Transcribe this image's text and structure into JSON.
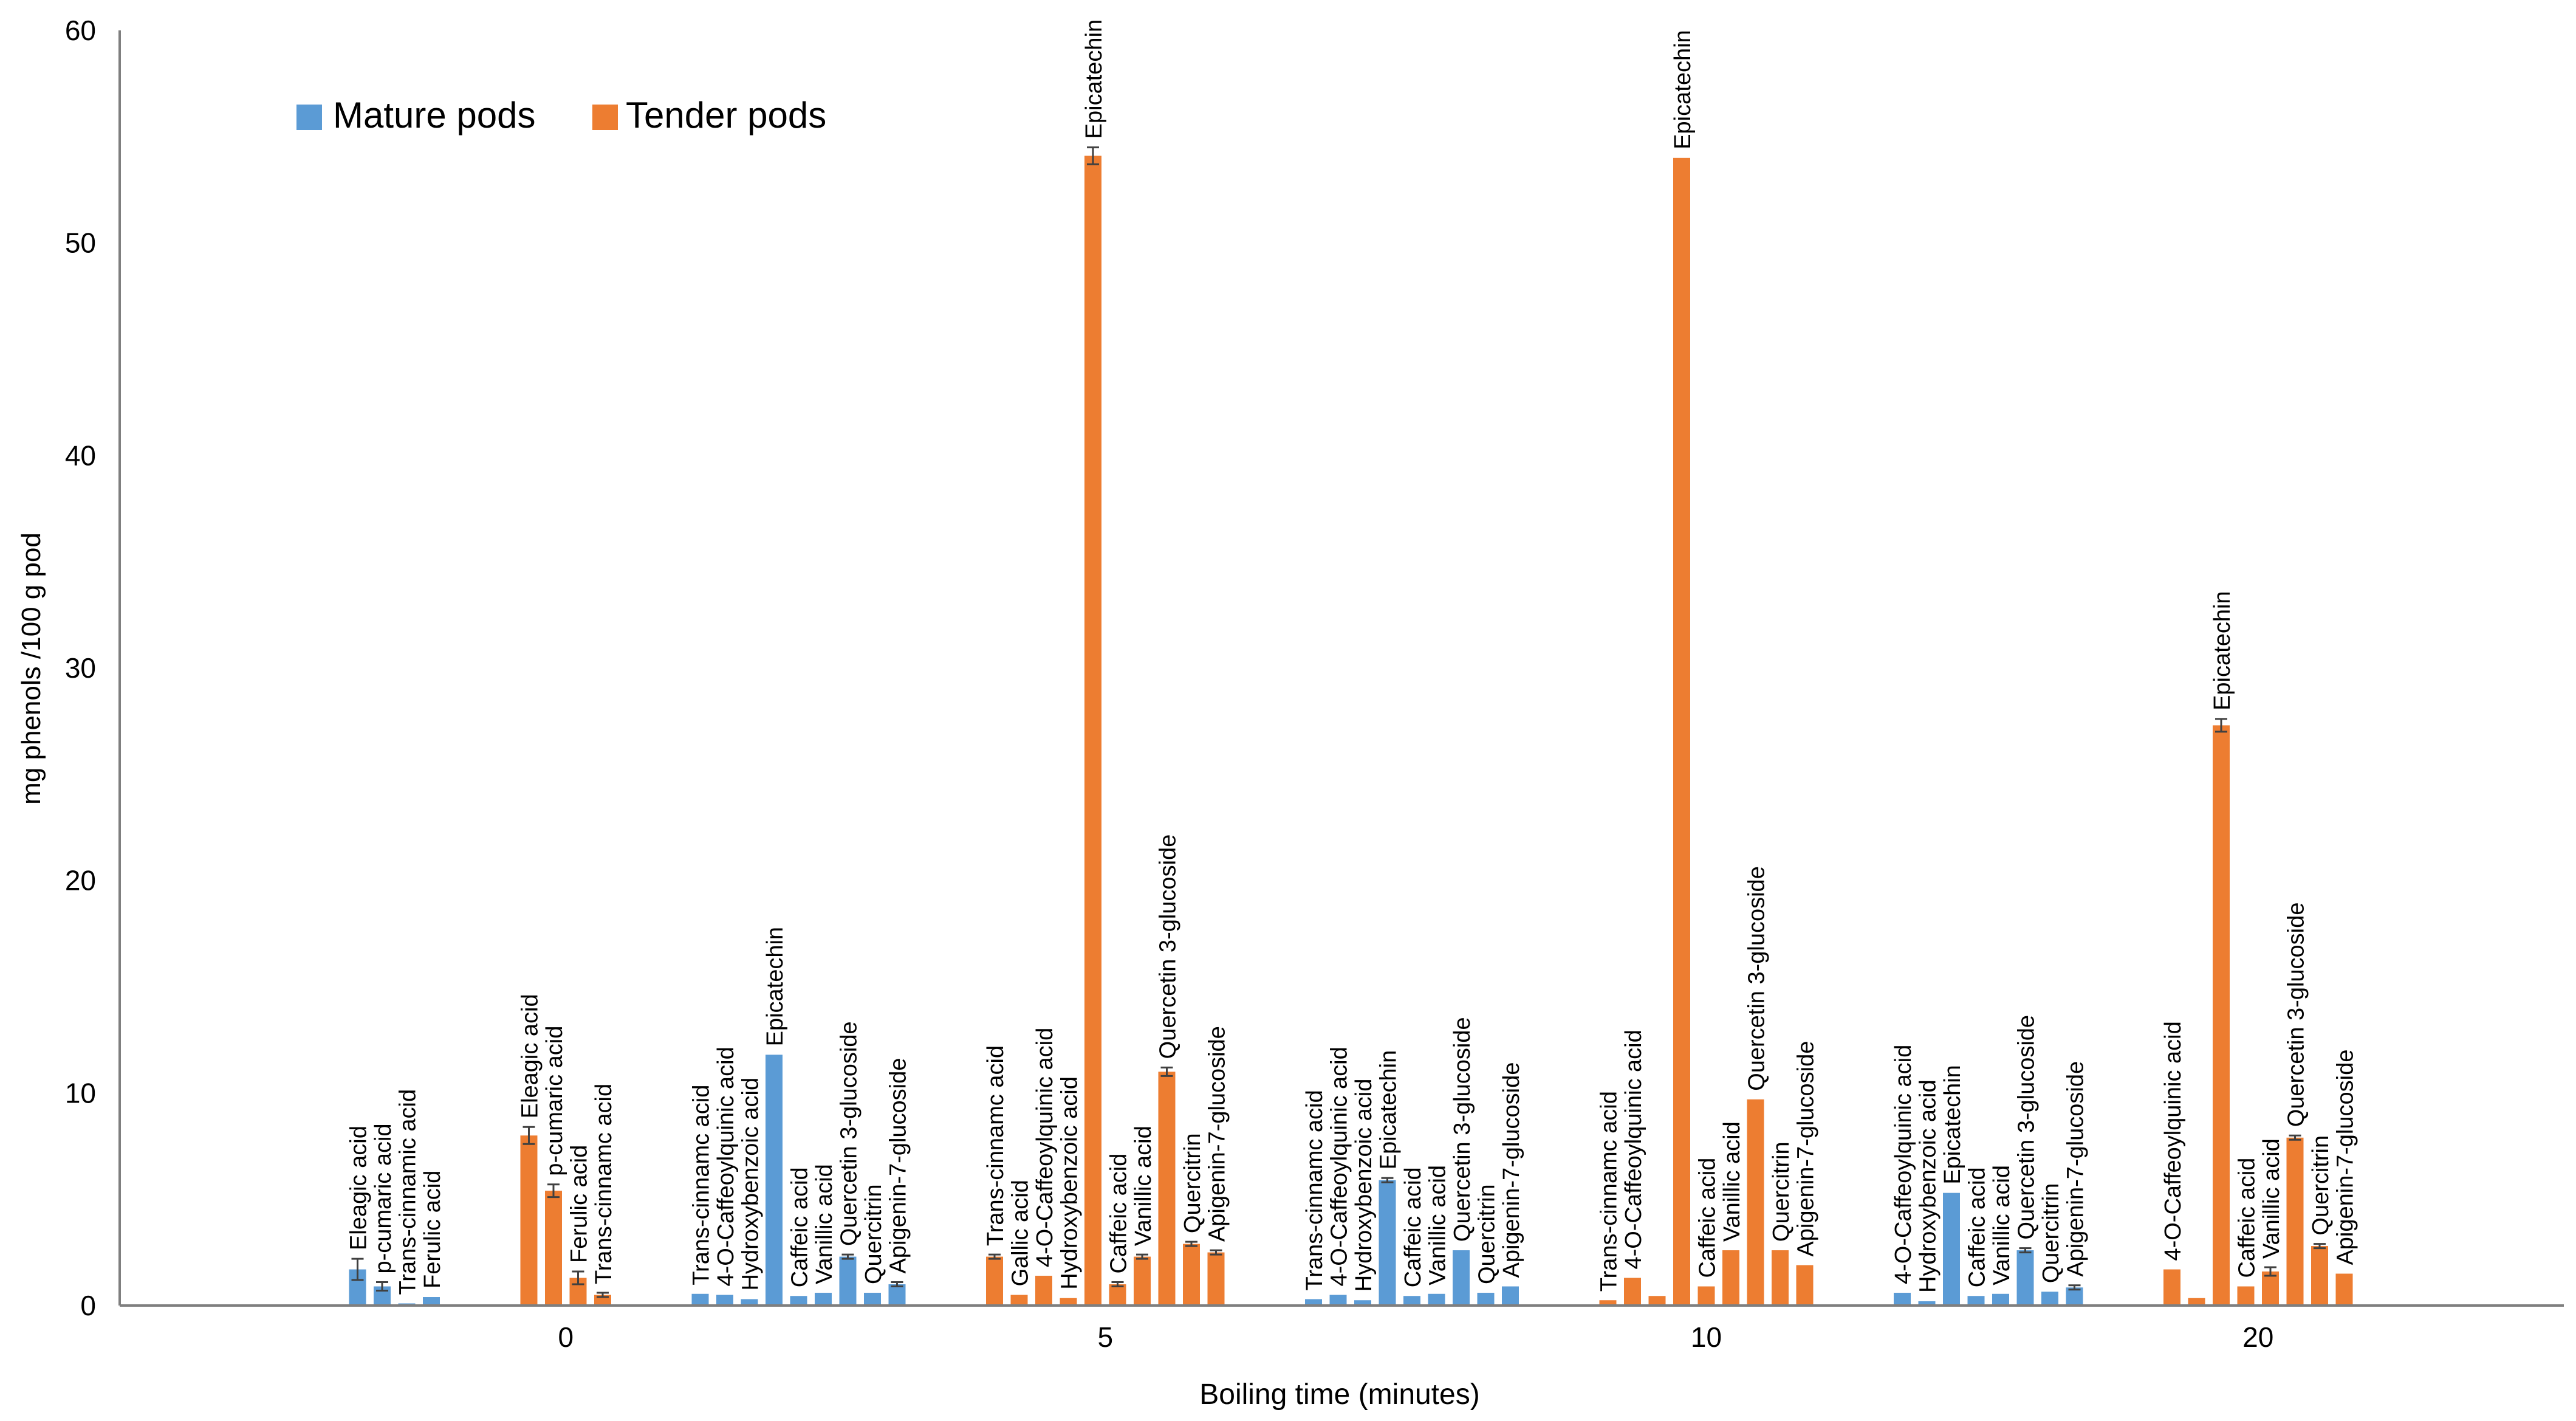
{
  "colors": {
    "mature": "#5B9BD5",
    "tender": "#ED7D31",
    "axis": "#7F7F7F",
    "error": "#404040"
  },
  "chart_data": {
    "type": "bar",
    "title": "",
    "xlabel": "Boiling time (minutes)",
    "ylabel": "mg  phenols /100 g pod",
    "ylim": [
      0,
      60
    ],
    "yticks": [
      "0",
      "10",
      "20",
      "30",
      "40",
      "50",
      "60"
    ],
    "xticks": [
      "0",
      "5",
      "10",
      "20"
    ],
    "grid": false,
    "legend_position": "top-left",
    "legend": [
      {
        "key": "mature",
        "label": "Mature pods"
      },
      {
        "key": "tender",
        "label": "Tender pods"
      }
    ],
    "groups": [
      {
        "tick": "",
        "series": "mature",
        "bars": [
          {
            "label": "Eleagic acid",
            "value": 1.7,
            "err": 0.5
          },
          {
            "label": "p-cumaric acid",
            "value": 0.9,
            "err": 0.2
          },
          {
            "label": "Trans-cinnamic acid",
            "value": 0.1,
            "err": 0
          },
          {
            "label": "Ferulic acid",
            "value": 0.4,
            "err": 0
          }
        ]
      },
      {
        "tick": "0",
        "series": "tender",
        "bars": [
          {
            "label": "Eleagic acid",
            "value": 8.0,
            "err": 0.4
          },
          {
            "label": "p-cumaric acid",
            "value": 5.4,
            "err": 0.3
          },
          {
            "label": "Ferulic acid",
            "value": 1.3,
            "err": 0.3
          },
          {
            "label": "Trans-cinnamc acid",
            "value": 0.5,
            "err": 0.1
          }
        ]
      },
      {
        "tick": "",
        "series": "mature",
        "bars": [
          {
            "label": "Trans-cinnamc acid",
            "value": 0.55,
            "err": 0
          },
          {
            "label": "4-O-Caffeoylquinic acid",
            "value": 0.5,
            "err": 0
          },
          {
            "label": "Hydroxybenzoic acid",
            "value": 0.3,
            "err": 0
          },
          {
            "label": "Epicatechin",
            "value": 11.8,
            "err": 0
          },
          {
            "label": "Caffeic acid",
            "value": 0.45,
            "err": 0
          },
          {
            "label": "Vanillic acid",
            "value": 0.6,
            "err": 0
          },
          {
            "label": "Quercetin 3-glucoside",
            "value": 2.3,
            "err": 0.1
          },
          {
            "label": "Quercitrin",
            "value": 0.6,
            "err": 0
          },
          {
            "label": "Apigenin-7-glucoside",
            "value": 1.0,
            "err": 0.1
          }
        ]
      },
      {
        "tick": "5",
        "series": "tender",
        "bars": [
          {
            "label": "Trans-cinnamc acid",
            "value": 2.3,
            "err": 0.1
          },
          {
            "label": "Gallic acid",
            "value": 0.5,
            "err": 0
          },
          {
            "label": "4-O-Caffeoylquinic acid",
            "value": 1.4,
            "err": 0
          },
          {
            "label": "Hydroxybenzoic acid",
            "value": 0.35,
            "err": 0
          },
          {
            "label": "Epicatechin",
            "value": 54.1,
            "err": 0.4
          },
          {
            "label": "Caffeic acid",
            "value": 1.0,
            "err": 0.1
          },
          {
            "label": "Vanillic acid",
            "value": 2.3,
            "err": 0.1
          },
          {
            "label": "Quercetin 3-glucoside",
            "value": 11.0,
            "err": 0.2
          },
          {
            "label": "Quercitrin",
            "value": 2.9,
            "err": 0.1
          },
          {
            "label": "Apigenin-7-glucoside",
            "value": 2.5,
            "err": 0.1
          }
        ]
      },
      {
        "tick": "",
        "series": "mature",
        "bars": [
          {
            "label": "Trans-cinnamc acid",
            "value": 0.3,
            "err": 0
          },
          {
            "label": "4-O-Caffeoylquinic acid",
            "value": 0.5,
            "err": 0
          },
          {
            "label": "Hydroxybenzoic acid",
            "value": 0.25,
            "err": 0
          },
          {
            "label": "Epicatechin",
            "value": 5.9,
            "err": 0.1
          },
          {
            "label": "Caffeic acid",
            "value": 0.45,
            "err": 0
          },
          {
            "label": "Vanillic acid",
            "value": 0.55,
            "err": 0
          },
          {
            "label": "Quercetin 3-glucoside",
            "value": 2.6,
            "err": 0
          },
          {
            "label": "Quercitrin",
            "value": 0.6,
            "err": 0
          },
          {
            "label": "Apigenin-7-glucoside",
            "value": 0.9,
            "err": 0
          }
        ]
      },
      {
        "tick": "10",
        "series": "tender",
        "bars": [
          {
            "label": "Trans-cinnamc acid",
            "value": 0.25,
            "err": 0
          },
          {
            "label": "4-O-Caffeoylquinic acid",
            "value": 1.3,
            "err": 0
          },
          {
            "label": "",
            "value": 0.45,
            "err": 0
          },
          {
            "label": "Epicatechin",
            "value": 54.0,
            "err": 0
          },
          {
            "label": "Caffeic acid",
            "value": 0.9,
            "err": 0
          },
          {
            "label": "Vanillic acid",
            "value": 2.6,
            "err": 0
          },
          {
            "label": "Quercetin 3-glucoside",
            "value": 9.7,
            "err": 0
          },
          {
            "label": "Quercitrin",
            "value": 2.6,
            "err": 0
          },
          {
            "label": "Apigenin-7-glucoside",
            "value": 1.9,
            "err": 0
          }
        ]
      },
      {
        "tick": "",
        "series": "mature",
        "bars": [
          {
            "label": "4-O-Caffeoylquinic acid",
            "value": 0.6,
            "err": 0
          },
          {
            "label": "Hydroxybenzoic acid",
            "value": 0.2,
            "err": 0
          },
          {
            "label": "Epicatechin",
            "value": 5.3,
            "err": 0
          },
          {
            "label": "Caffeic acid",
            "value": 0.45,
            "err": 0
          },
          {
            "label": "Vanillic acid",
            "value": 0.55,
            "err": 0
          },
          {
            "label": "Quercetin 3-glucoside",
            "value": 2.6,
            "err": 0.1
          },
          {
            "label": "Quercitrin",
            "value": 0.65,
            "err": 0
          },
          {
            "label": "Apigenin-7-glucoside",
            "value": 0.85,
            "err": 0.1
          }
        ]
      },
      {
        "tick": "20",
        "series": "tender",
        "bars": [
          {
            "label": "4-O-Caffeoylquinic acid",
            "value": 1.7,
            "err": 0
          },
          {
            "label": "",
            "value": 0.35,
            "err": 0
          },
          {
            "label": "Epicatechin",
            "value": 27.3,
            "err": 0.3
          },
          {
            "label": "Caffeic acid",
            "value": 0.9,
            "err": 0
          },
          {
            "label": "Vanillic acid",
            "value": 1.6,
            "err": 0.2
          },
          {
            "label": "Quercetin 3-glucoside",
            "value": 7.9,
            "err": 0.1
          },
          {
            "label": "Quercitrin",
            "value": 2.8,
            "err": 0.1
          },
          {
            "label": "Apigenin-7-glucoside",
            "value": 1.5,
            "err": 0
          }
        ]
      }
    ]
  }
}
